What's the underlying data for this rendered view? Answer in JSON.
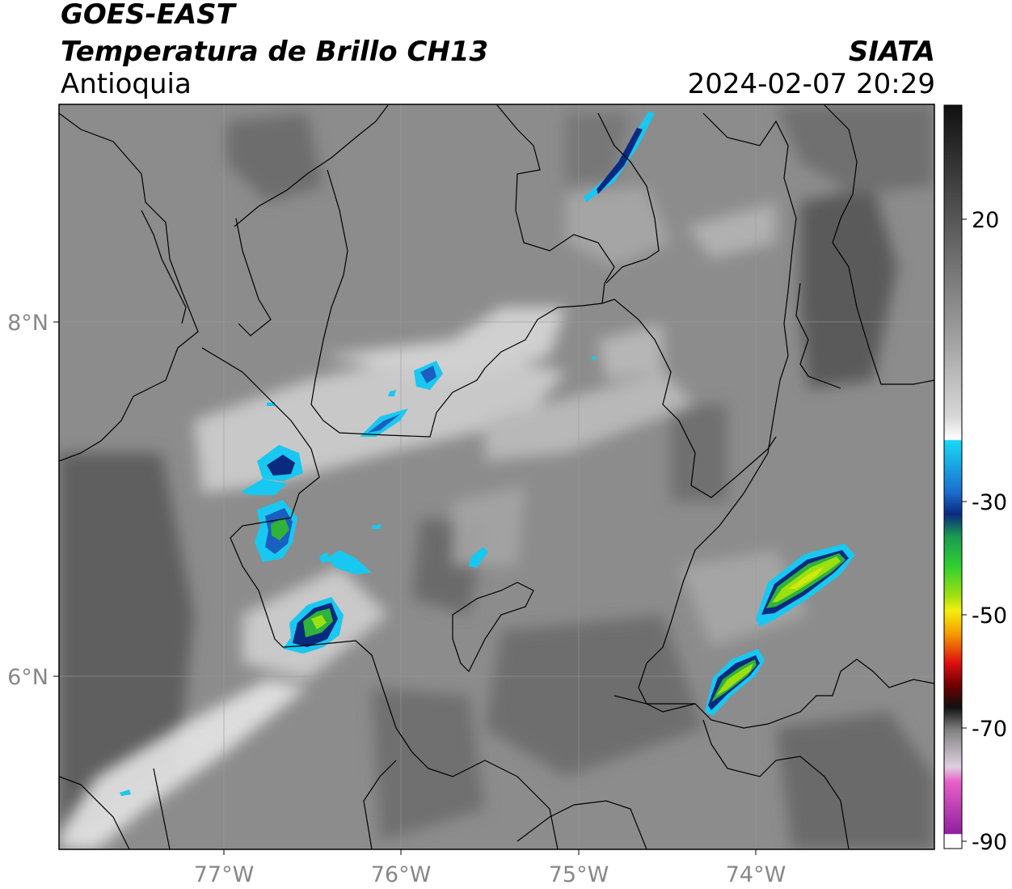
{
  "header": {
    "satellite": "GOES-EAST",
    "product": "Temperatura de Brillo CH13",
    "region": "Antioquia",
    "organization": "SIATA",
    "timestamp": "2024-02-07 20:29"
  },
  "map": {
    "lon_labels": [
      "77°W",
      "76°W",
      "75°W",
      "74°W"
    ],
    "lat_labels": [
      "8°N",
      "6°N"
    ]
  },
  "colorbar": {
    "tick_labels": [
      "20",
      "-30",
      "-50",
      "-70",
      "-90"
    ]
  },
  "colors": {
    "cyan": "#19c8f0",
    "blue": "#1a5fc0",
    "navy": "#0a2a80",
    "green": "#2fb33a",
    "lime": "#9be010",
    "yellow": "#f2ee10",
    "orange": "#f5a000",
    "red": "#e01010",
    "magenta": "#d050c0"
  }
}
